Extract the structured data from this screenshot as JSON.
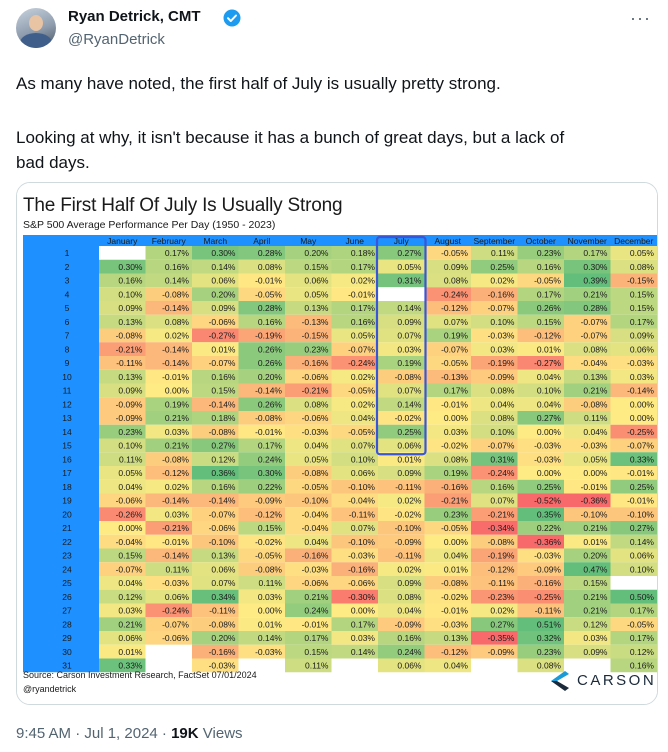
{
  "tweet": {
    "author_name": "Ryan Detrick, CMT",
    "handle": "@RyanDetrick",
    "text_1": "As many have noted, the first half of July is usually pretty strong.",
    "text_2": "Looking at why, it isn't because it has a bunch of great days, but a lack of",
    "text_3": "bad days.",
    "timestamp": "9:45 AM · Jul 1, 2024 · ",
    "views_count": "19K",
    "views_label": " Views",
    "more_icon": "more-icon",
    "verified_icon": "verified-badge-icon"
  },
  "chart": {
    "title": "The First Half Of July Is Usually Strong",
    "subtitle": "S&P 500 Average Performance Per Day (1950 - 2023)",
    "source": "Source: Carson Investment Research, FactSet 07/01/2024",
    "credit": "@ryandetrick",
    "logo_text": "CARSON",
    "highlight": "July days 1-15"
  },
  "chart_data": {
    "type": "heatmap",
    "title": "The First Half Of July Is Usually Strong",
    "subtitle": "S&P 500 Average Performance Per Day (1950 - 2023)",
    "columns": [
      "January",
      "February",
      "March",
      "April",
      "May",
      "June",
      "July",
      "August",
      "September",
      "October",
      "November",
      "December"
    ],
    "rows": [
      "1",
      "2",
      "3",
      "4",
      "5",
      "6",
      "7",
      "8",
      "9",
      "10",
      "11",
      "12",
      "13",
      "14",
      "15",
      "16",
      "17",
      "18",
      "19",
      "20",
      "21",
      "22",
      "23",
      "24",
      "25",
      "26",
      "27",
      "28",
      "29",
      "30",
      "31"
    ],
    "values": [
      [
        null,
        "0.17%",
        "0.30%",
        "0.28%",
        "0.20%",
        "0.18%",
        "0.27%",
        "-0.05%",
        "0.11%",
        "0.23%",
        "0.17%",
        "0.05%"
      ],
      [
        "0.30%",
        "0.16%",
        "0.14%",
        "0.08%",
        "0.15%",
        "0.17%",
        "0.05%",
        "0.09%",
        "0.25%",
        "0.16%",
        "0.30%",
        "0.08%"
      ],
      [
        "0.16%",
        "0.14%",
        "0.06%",
        "-0.01%",
        "0.06%",
        "0.02%",
        "0.31%",
        "0.08%",
        "0.02%",
        "-0.05%",
        "0.39%",
        "-0.15%"
      ],
      [
        "0.10%",
        "-0.08%",
        "0.20%",
        "-0.05%",
        "0.05%",
        "-0.01%",
        null,
        "-0.24%",
        "-0.16%",
        "0.17%",
        "0.21%",
        "0.15%"
      ],
      [
        "0.09%",
        "-0.14%",
        "0.09%",
        "0.28%",
        "0.13%",
        "0.17%",
        "0.14%",
        "-0.12%",
        "-0.07%",
        "0.26%",
        "0.28%",
        "0.15%"
      ],
      [
        "0.13%",
        "0.08%",
        "-0.06%",
        "0.16%",
        "-0.13%",
        "0.16%",
        "0.09%",
        "0.07%",
        "0.10%",
        "0.15%",
        "-0.07%",
        "0.17%"
      ],
      [
        "-0.08%",
        "0.02%",
        "-0.27%",
        "-0.19%",
        "-0.15%",
        "0.05%",
        "0.07%",
        "0.19%",
        "-0.03%",
        "-0.12%",
        "-0.07%",
        "0.09%"
      ],
      [
        "-0.21%",
        "-0.14%",
        "0.01%",
        "0.26%",
        "0.23%",
        "-0.07%",
        "0.03%",
        "-0.07%",
        "0.03%",
        "0.01%",
        "0.08%",
        "0.06%"
      ],
      [
        "-0.11%",
        "-0.14%",
        "-0.07%",
        "0.26%",
        "-0.16%",
        "-0.24%",
        "0.19%",
        "-0.05%",
        "-0.19%",
        "-0.27%",
        "-0.04%",
        "-0.03%"
      ],
      [
        "0.13%",
        "-0.01%",
        "0.16%",
        "0.20%",
        "-0.06%",
        "0.02%",
        "-0.08%",
        "-0.13%",
        "-0.09%",
        "0.04%",
        "0.13%",
        "0.03%"
      ],
      [
        "0.09%",
        "0.00%",
        "0.15%",
        "-0.14%",
        "-0.21%",
        "-0.05%",
        "0.07%",
        "0.17%",
        "0.08%",
        "0.10%",
        "0.21%",
        "-0.14%"
      ],
      [
        "-0.09%",
        "0.19%",
        "-0.14%",
        "0.26%",
        "0.08%",
        "0.02%",
        "0.14%",
        "-0.01%",
        "0.04%",
        "0.04%",
        "-0.08%",
        "0.00%"
      ],
      [
        "-0.09%",
        "0.21%",
        "0.18%",
        "-0.08%",
        "-0.06%",
        "0.04%",
        "-0.02%",
        "0.00%",
        "0.08%",
        "0.27%",
        "0.11%",
        "0.00%"
      ],
      [
        "0.23%",
        "0.03%",
        "-0.08%",
        "-0.01%",
        "-0.03%",
        "-0.05%",
        "0.25%",
        "0.03%",
        "0.10%",
        "0.00%",
        "0.04%",
        "-0.25%"
      ],
      [
        "0.10%",
        "0.21%",
        "0.27%",
        "0.17%",
        "0.04%",
        "0.07%",
        "0.06%",
        "-0.02%",
        "-0.07%",
        "-0.03%",
        "-0.03%",
        "-0.07%"
      ],
      [
        "0.11%",
        "-0.08%",
        "0.12%",
        "0.24%",
        "0.05%",
        "0.10%",
        "0.01%",
        "0.08%",
        "0.31%",
        "-0.03%",
        "0.05%",
        "0.33%"
      ],
      [
        "0.05%",
        "-0.12%",
        "0.36%",
        "0.30%",
        "-0.08%",
        "0.06%",
        "0.09%",
        "0.19%",
        "-0.24%",
        "0.00%",
        "0.00%",
        "-0.01%"
      ],
      [
        "0.04%",
        "0.02%",
        "0.16%",
        "0.22%",
        "-0.05%",
        "-0.10%",
        "-0.11%",
        "-0.16%",
        "0.16%",
        "0.25%",
        "-0.01%",
        "0.25%"
      ],
      [
        "-0.06%",
        "-0.14%",
        "-0.14%",
        "-0.09%",
        "-0.10%",
        "-0.04%",
        "0.02%",
        "-0.21%",
        "0.07%",
        "-0.52%",
        "-0.36%",
        "-0.01%"
      ],
      [
        "-0.26%",
        "0.03%",
        "-0.07%",
        "-0.12%",
        "-0.04%",
        "-0.11%",
        "-0.02%",
        "0.23%",
        "-0.21%",
        "0.35%",
        "-0.10%",
        "-0.10%"
      ],
      [
        "0.00%",
        "-0.21%",
        "-0.06%",
        "0.15%",
        "-0.04%",
        "0.07%",
        "-0.10%",
        "-0.05%",
        "-0.34%",
        "0.22%",
        "0.21%",
        "0.27%"
      ],
      [
        "-0.04%",
        "-0.01%",
        "-0.10%",
        "-0.02%",
        "0.04%",
        "-0.10%",
        "-0.09%",
        "0.00%",
        "-0.08%",
        "-0.36%",
        "0.01%",
        "0.14%"
      ],
      [
        "0.15%",
        "-0.14%",
        "0.13%",
        "-0.05%",
        "-0.16%",
        "-0.03%",
        "-0.11%",
        "0.04%",
        "-0.19%",
        "-0.03%",
        "0.20%",
        "0.06%"
      ],
      [
        "-0.07%",
        "0.11%",
        "0.06%",
        "-0.08%",
        "-0.03%",
        "-0.16%",
        "0.02%",
        "0.01%",
        "-0.12%",
        "-0.09%",
        "0.47%",
        "0.10%"
      ],
      [
        "0.04%",
        "-0.03%",
        "0.07%",
        "0.11%",
        "-0.06%",
        "-0.06%",
        "0.09%",
        "-0.08%",
        "-0.11%",
        "-0.16%",
        "0.15%",
        null
      ],
      [
        "0.12%",
        "0.06%",
        "0.34%",
        "0.03%",
        "0.21%",
        "-0.30%",
        "0.08%",
        "-0.02%",
        "-0.23%",
        "-0.25%",
        "0.21%",
        "0.50%"
      ],
      [
        "0.03%",
        "-0.24%",
        "-0.11%",
        "0.00%",
        "0.24%",
        "0.00%",
        "0.04%",
        "-0.01%",
        "0.02%",
        "-0.11%",
        "0.21%",
        "0.17%"
      ],
      [
        "0.21%",
        "-0.07%",
        "-0.08%",
        "0.01%",
        "-0.01%",
        "0.17%",
        "-0.09%",
        "-0.03%",
        "0.27%",
        "0.51%",
        "0.12%",
        "-0.05%"
      ],
      [
        "0.06%",
        "-0.06%",
        "0.20%",
        "0.14%",
        "0.17%",
        "0.03%",
        "0.16%",
        "0.13%",
        "-0.35%",
        "0.32%",
        "0.03%",
        "0.17%"
      ],
      [
        "0.01%",
        null,
        "-0.16%",
        "-0.03%",
        "0.15%",
        "0.14%",
        "0.24%",
        "-0.12%",
        "-0.09%",
        "0.23%",
        "0.09%",
        "0.12%"
      ],
      [
        "0.33%",
        null,
        "-0.03%",
        null,
        "0.11%",
        null,
        "0.06%",
        "0.04%",
        null,
        "0.08%",
        null,
        "0.16%"
      ]
    ],
    "color_scale": {
      "negative": "#f8696b",
      "neutral": "#ffeb84",
      "positive": "#63be7b"
    },
    "header_color": "#1e90ff"
  }
}
